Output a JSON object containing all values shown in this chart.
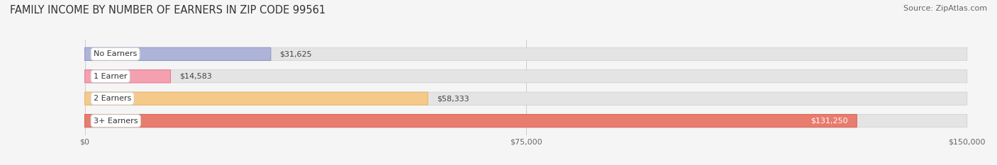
{
  "title": "FAMILY INCOME BY NUMBER OF EARNERS IN ZIP CODE 99561",
  "source": "Source: ZipAtlas.com",
  "categories": [
    "No Earners",
    "1 Earner",
    "2 Earners",
    "3+ Earners"
  ],
  "values": [
    31625,
    14583,
    58333,
    131250
  ],
  "bar_colors": [
    "#aeb4d8",
    "#f4a0b0",
    "#f5c98a",
    "#e87c6e"
  ],
  "bar_edge_colors": [
    "#9099c8",
    "#e8809a",
    "#e8b870",
    "#d86858"
  ],
  "label_colors": [
    "#333333",
    "#333333",
    "#333333",
    "#ffffff"
  ],
  "xlim": [
    0,
    150000
  ],
  "xticks": [
    0,
    75000,
    150000
  ],
  "xtick_labels": [
    "$0",
    "$75,000",
    "$150,000"
  ],
  "background_color": "#f5f5f5",
  "bar_background_color": "#e4e4e4",
  "title_fontsize": 10.5,
  "source_fontsize": 8,
  "label_fontsize": 8,
  "tick_fontsize": 8,
  "category_fontsize": 8,
  "bar_height": 0.58,
  "figsize": [
    14.06,
    2.33
  ],
  "dpi": 100
}
